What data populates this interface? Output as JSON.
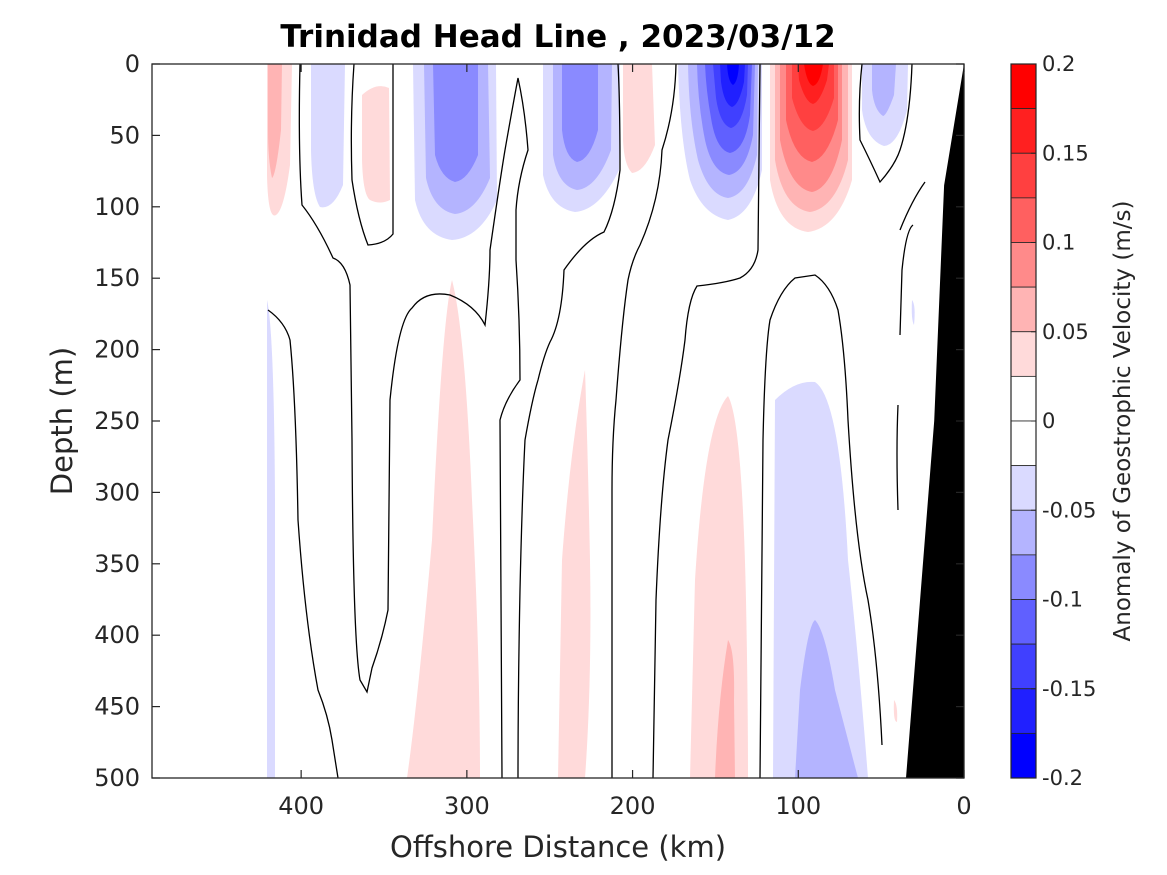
{
  "chart_data": {
    "type": "contour",
    "title": "Trinidad Head Line , 2023/03/12",
    "xlabel": "Offshore Distance (km)",
    "ylabel": "Depth (m)",
    "xlim": [
      490,
      0
    ],
    "ylim": [
      0,
      500
    ],
    "x_reversed": true,
    "y_reversed": true,
    "xticks": [
      400,
      300,
      200,
      100,
      0
    ],
    "xtick_labels": [
      "400",
      "300",
      "200",
      "100",
      "0"
    ],
    "yticks": [
      0,
      50,
      100,
      150,
      200,
      250,
      300,
      350,
      400,
      450,
      500
    ],
    "ytick_labels": [
      "0",
      "50",
      "100",
      "150",
      "200",
      "250",
      "300",
      "350",
      "400",
      "450",
      "500"
    ],
    "grid": false,
    "colorbar": {
      "label": "Anomaly of Geostrophic Velocity (m/s)",
      "limits": [
        -0.2,
        0.2
      ],
      "ticks": [
        0.2,
        0.15,
        0.1,
        0.05,
        0,
        -0.05,
        -0.1,
        -0.15,
        -0.2
      ],
      "tick_labels": [
        "0.2",
        "0.15",
        "0.1",
        "0.05",
        "0",
        "-0.05",
        "-0.1",
        "-0.15",
        "-0.2"
      ],
      "levels": [
        {
          "lo": 0.175,
          "hi": 0.2,
          "color": "#ff0000"
        },
        {
          "lo": 0.15,
          "hi": 0.175,
          "color": "#ff2020"
        },
        {
          "lo": 0.125,
          "hi": 0.15,
          "color": "#ff4040"
        },
        {
          "lo": 0.1,
          "hi": 0.125,
          "color": "#ff6060"
        },
        {
          "lo": 0.075,
          "hi": 0.1,
          "color": "#ff8a8a"
        },
        {
          "lo": 0.05,
          "hi": 0.075,
          "color": "#ffb4b4"
        },
        {
          "lo": 0.025,
          "hi": 0.05,
          "color": "#ffdada"
        },
        {
          "lo": 0,
          "hi": 0.025,
          "color": "#ffffff"
        },
        {
          "lo": -0.025,
          "hi": 0,
          "color": "#ffffff"
        },
        {
          "lo": -0.05,
          "hi": -0.025,
          "color": "#dadaff"
        },
        {
          "lo": -0.075,
          "hi": -0.05,
          "color": "#b4b4ff"
        },
        {
          "lo": -0.1,
          "hi": -0.075,
          "color": "#8a8aff"
        },
        {
          "lo": -0.125,
          "hi": -0.1,
          "color": "#6060ff"
        },
        {
          "lo": -0.15,
          "hi": -0.125,
          "color": "#4040ff"
        },
        {
          "lo": -0.175,
          "hi": -0.15,
          "color": "#2020ff"
        },
        {
          "lo": -0.2,
          "hi": -0.175,
          "color": "#0000ff"
        }
      ]
    },
    "zero_contour_color": "#000000",
    "bathymetry": {
      "color": "#000000",
      "outline": [
        [
          0,
          0
        ],
        [
          12,
          85
        ],
        [
          18,
          250
        ],
        [
          35,
          500
        ],
        [
          0,
          500
        ]
      ]
    },
    "anomaly_cores": [
      {
        "x": 140,
        "depth": 10,
        "value": -0.2
      },
      {
        "x": 90,
        "depth": 15,
        "value": 0.2
      },
      {
        "x": 235,
        "depth": 50,
        "value": -0.1
      },
      {
        "x": 310,
        "depth": 60,
        "value": -0.1
      },
      {
        "x": 385,
        "depth": 30,
        "value": -0.05
      },
      {
        "x": 418,
        "depth": 30,
        "value": 0.075
      },
      {
        "x": 50,
        "depth": 20,
        "value": -0.1
      },
      {
        "x": 210,
        "depth": 30,
        "value": 0.05
      },
      {
        "x": 360,
        "depth": 50,
        "value": 0.05
      },
      {
        "x": 90,
        "depth": 450,
        "value": -0.075
      },
      {
        "x": 140,
        "depth": 460,
        "value": 0.075
      },
      {
        "x": 310,
        "depth": 400,
        "value": 0.05
      },
      {
        "x": 235,
        "depth": 400,
        "value": 0.05
      },
      {
        "x": 418,
        "depth": 420,
        "value": -0.05
      }
    ]
  }
}
